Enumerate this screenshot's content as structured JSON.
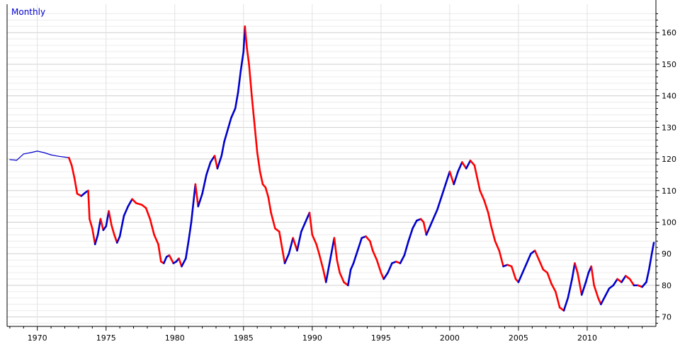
{
  "chart_data": {
    "type": "line",
    "title": "",
    "period_label": "Monthly",
    "xlabel": "",
    "ylabel": "",
    "x_ticks": [
      "1970",
      "1975",
      "1980",
      "1985",
      "1990",
      "1995",
      "2000",
      "2005",
      "2010"
    ],
    "y_ticks": [
      "70",
      "80",
      "90",
      "100",
      "110",
      "120",
      "130",
      "140",
      "150",
      "160"
    ],
    "xlim": [
      1967.8,
      2015.0
    ],
    "ylim": [
      67,
      169
    ],
    "grid": true,
    "up_color": "#0000cc",
    "down_color": "#ff0000",
    "series": [
      {
        "values": [
          [
            1968.0,
            119.8
          ],
          [
            1968.5,
            119.6
          ],
          [
            1969.0,
            121.6
          ],
          [
            1969.5,
            122.0
          ],
          [
            1970.0,
            122.5
          ],
          [
            1970.5,
            122.0
          ],
          [
            1971.0,
            121.3
          ],
          [
            1971.5,
            120.9
          ],
          [
            1972.0,
            120.6
          ],
          [
            1972.3,
            120.4
          ],
          [
            1972.5,
            118.0
          ],
          [
            1972.7,
            114.0
          ],
          [
            1972.9,
            109.0
          ],
          [
            1973.2,
            108.3
          ],
          [
            1973.5,
            109.4
          ],
          [
            1973.7,
            110.0
          ],
          [
            1973.8,
            101.0
          ],
          [
            1974.0,
            98.0
          ],
          [
            1974.2,
            93.0
          ],
          [
            1974.4,
            96.0
          ],
          [
            1974.6,
            101.0
          ],
          [
            1974.8,
            97.5
          ],
          [
            1975.0,
            98.7
          ],
          [
            1975.2,
            103.5
          ],
          [
            1975.4,
            99.0
          ],
          [
            1975.6,
            96.0
          ],
          [
            1975.8,
            93.5
          ],
          [
            1976.0,
            95.5
          ],
          [
            1976.3,
            102.0
          ],
          [
            1976.6,
            105.0
          ],
          [
            1976.9,
            107.3
          ],
          [
            1977.2,
            106.0
          ],
          [
            1977.6,
            105.5
          ],
          [
            1977.9,
            104.5
          ],
          [
            1978.2,
            101.0
          ],
          [
            1978.5,
            96.0
          ],
          [
            1978.8,
            93.0
          ],
          [
            1979.0,
            87.5
          ],
          [
            1979.2,
            87.0
          ],
          [
            1979.4,
            89.0
          ],
          [
            1979.6,
            89.5
          ],
          [
            1979.9,
            87.0
          ],
          [
            1980.1,
            87.5
          ],
          [
            1980.3,
            88.5
          ],
          [
            1980.5,
            86.0
          ],
          [
            1980.8,
            88.5
          ],
          [
            1981.0,
            94.0
          ],
          [
            1981.2,
            100.0
          ],
          [
            1981.5,
            112.0
          ],
          [
            1981.7,
            105.0
          ],
          [
            1982.0,
            109.0
          ],
          [
            1982.3,
            115.0
          ],
          [
            1982.6,
            119.0
          ],
          [
            1982.9,
            121.0
          ],
          [
            1983.1,
            117.0
          ],
          [
            1983.4,
            121.0
          ],
          [
            1983.6,
            125.5
          ],
          [
            1983.9,
            130.0
          ],
          [
            1984.1,
            133.0
          ],
          [
            1984.4,
            136.0
          ],
          [
            1984.6,
            141.0
          ],
          [
            1984.8,
            148.0
          ],
          [
            1985.0,
            154.0
          ],
          [
            1985.1,
            162.0
          ],
          [
            1985.25,
            155.0
          ],
          [
            1985.4,
            150.0
          ],
          [
            1985.6,
            140.0
          ],
          [
            1985.8,
            131.0
          ],
          [
            1986.0,
            122.0
          ],
          [
            1986.2,
            116.0
          ],
          [
            1986.4,
            112.0
          ],
          [
            1986.6,
            111.0
          ],
          [
            1986.8,
            108.0
          ],
          [
            1987.0,
            103.0
          ],
          [
            1987.3,
            98.0
          ],
          [
            1987.6,
            97.0
          ],
          [
            1987.8,
            92.0
          ],
          [
            1988.0,
            87.0
          ],
          [
            1988.3,
            90.0
          ],
          [
            1988.6,
            95.0
          ],
          [
            1988.9,
            91.0
          ],
          [
            1989.2,
            97.0
          ],
          [
            1989.5,
            100.0
          ],
          [
            1989.8,
            103.0
          ],
          [
            1990.0,
            96.0
          ],
          [
            1990.3,
            93.0
          ],
          [
            1990.5,
            90.0
          ],
          [
            1990.8,
            85.0
          ],
          [
            1991.0,
            81.0
          ],
          [
            1991.3,
            88.0
          ],
          [
            1991.6,
            95.0
          ],
          [
            1991.8,
            88.0
          ],
          [
            1992.0,
            84.0
          ],
          [
            1992.3,
            81.0
          ],
          [
            1992.6,
            80.0
          ],
          [
            1992.8,
            85.0
          ],
          [
            1993.0,
            87.0
          ],
          [
            1993.3,
            91.0
          ],
          [
            1993.6,
            95.0
          ],
          [
            1993.9,
            95.5
          ],
          [
            1994.2,
            94.0
          ],
          [
            1994.4,
            91.0
          ],
          [
            1994.7,
            88.0
          ],
          [
            1995.0,
            84.0
          ],
          [
            1995.2,
            82.0
          ],
          [
            1995.5,
            84.0
          ],
          [
            1995.8,
            87.0
          ],
          [
            1996.1,
            87.5
          ],
          [
            1996.4,
            87.0
          ],
          [
            1996.7,
            89.5
          ],
          [
            1997.0,
            94.0
          ],
          [
            1997.3,
            98.0
          ],
          [
            1997.6,
            100.5
          ],
          [
            1997.9,
            101.0
          ],
          [
            1998.1,
            100.0
          ],
          [
            1998.3,
            96.0
          ],
          [
            1998.6,
            99.0
          ],
          [
            1998.9,
            102.0
          ],
          [
            1999.1,
            104.0
          ],
          [
            1999.4,
            108.0
          ],
          [
            1999.7,
            112.0
          ],
          [
            2000.0,
            116.0
          ],
          [
            2000.3,
            112.0
          ],
          [
            2000.6,
            116.0
          ],
          [
            2000.9,
            119.0
          ],
          [
            2001.2,
            117.0
          ],
          [
            2001.5,
            119.5
          ],
          [
            2001.8,
            118.0
          ],
          [
            2002.0,
            114.0
          ],
          [
            2002.2,
            110.0
          ],
          [
            2002.5,
            107.0
          ],
          [
            2002.8,
            103.0
          ],
          [
            2003.0,
            99.0
          ],
          [
            2003.3,
            94.0
          ],
          [
            2003.6,
            91.0
          ],
          [
            2003.9,
            86.0
          ],
          [
            2004.2,
            86.5
          ],
          [
            2004.5,
            86.0
          ],
          [
            2004.8,
            82.0
          ],
          [
            2005.0,
            81.0
          ],
          [
            2005.3,
            84.0
          ],
          [
            2005.6,
            87.0
          ],
          [
            2005.9,
            90.0
          ],
          [
            2006.2,
            91.0
          ],
          [
            2006.5,
            88.0
          ],
          [
            2006.8,
            85.0
          ],
          [
            2007.1,
            84.0
          ],
          [
            2007.4,
            80.5
          ],
          [
            2007.7,
            78.0
          ],
          [
            2008.0,
            73.0
          ],
          [
            2008.3,
            72.0
          ],
          [
            2008.6,
            76.0
          ],
          [
            2008.9,
            82.0
          ],
          [
            2009.1,
            87.0
          ],
          [
            2009.3,
            84.0
          ],
          [
            2009.6,
            77.0
          ],
          [
            2009.9,
            81.0
          ],
          [
            2010.1,
            84.0
          ],
          [
            2010.3,
            86.0
          ],
          [
            2010.5,
            80.0
          ],
          [
            2010.8,
            76.0
          ],
          [
            2011.0,
            74.0
          ],
          [
            2011.3,
            76.5
          ],
          [
            2011.6,
            79.0
          ],
          [
            2011.9,
            80.0
          ],
          [
            2012.2,
            82.0
          ],
          [
            2012.5,
            81.0
          ],
          [
            2012.8,
            83.0
          ],
          [
            2013.1,
            82.0
          ],
          [
            2013.4,
            80.0
          ],
          [
            2013.7,
            80.0
          ],
          [
            2014.0,
            79.5
          ],
          [
            2014.3,
            81.0
          ],
          [
            2014.5,
            85.0
          ],
          [
            2014.7,
            90.0
          ],
          [
            2014.85,
            93.5
          ]
        ]
      }
    ]
  }
}
